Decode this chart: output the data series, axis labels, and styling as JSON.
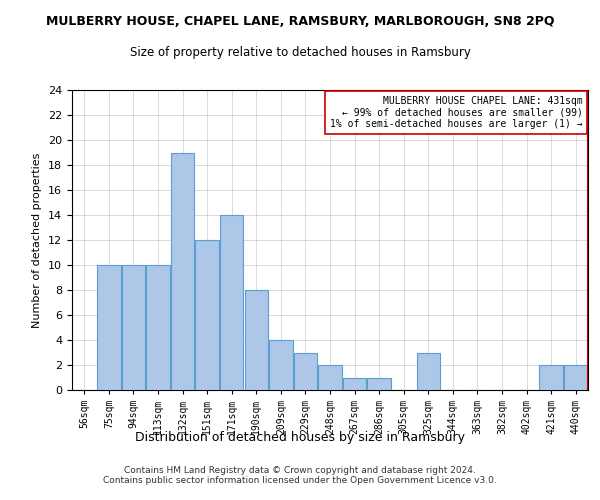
{
  "title": "MULBERRY HOUSE, CHAPEL LANE, RAMSBURY, MARLBOROUGH, SN8 2PQ",
  "subtitle": "Size of property relative to detached houses in Ramsbury",
  "xlabel": "Distribution of detached houses by size in Ramsbury",
  "ylabel": "Number of detached properties",
  "bin_labels": [
    "56sqm",
    "75sqm",
    "94sqm",
    "113sqm",
    "132sqm",
    "151sqm",
    "171sqm",
    "190sqm",
    "209sqm",
    "229sqm",
    "248sqm",
    "267sqm",
    "286sqm",
    "305sqm",
    "325sqm",
    "344sqm",
    "363sqm",
    "382sqm",
    "402sqm",
    "421sqm",
    "440sqm"
  ],
  "bar_values": [
    0,
    10,
    10,
    10,
    19,
    12,
    14,
    8,
    4,
    3,
    2,
    1,
    1,
    0,
    3,
    0,
    0,
    0,
    0,
    2,
    2
  ],
  "bar_color": "#aec6e8",
  "bar_edge_color": "#5a9fd4",
  "highlight_line_color": "#cc0000",
  "annotation_text": "MULBERRY HOUSE CHAPEL LANE: 431sqm\n← 99% of detached houses are smaller (99)\n1% of semi-detached houses are larger (1) →",
  "annotation_box_color": "#ffffff",
  "annotation_box_edge_color": "#cc0000",
  "ylim": [
    0,
    24
  ],
  "yticks": [
    0,
    2,
    4,
    6,
    8,
    10,
    12,
    14,
    16,
    18,
    20,
    22,
    24
  ],
  "footer_text": "Contains HM Land Registry data © Crown copyright and database right 2024.\nContains public sector information licensed under the Open Government Licence v3.0.",
  "background_color": "#ffffff",
  "grid_color": "#cccccc"
}
